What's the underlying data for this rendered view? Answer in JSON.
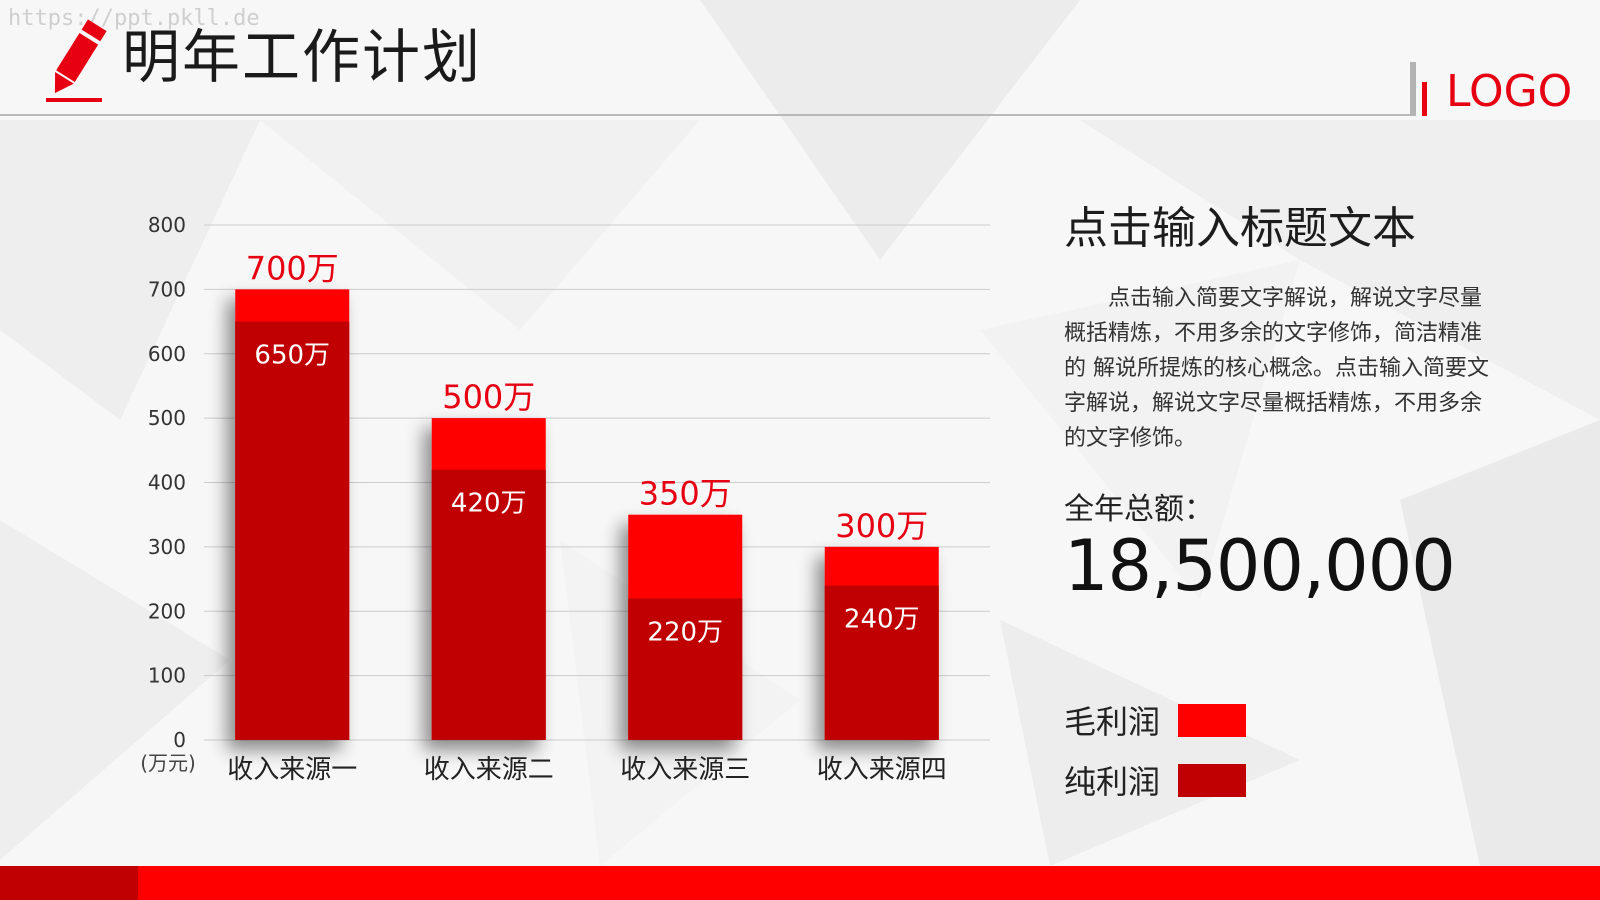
{
  "watermark": "https://ppt.pkll.de",
  "header": {
    "title": "明年工作计划",
    "logo_text": "LOGO",
    "icon": "pencil-icon"
  },
  "colors": {
    "accent": "#e60012",
    "gross": "#ff0000",
    "net": "#c00000"
  },
  "side": {
    "title": "点击输入标题文本",
    "description": "点击输入简要文字解说，解说文字尽量概括精炼，不用多余的文字修饰，简洁精准的 解说所提炼的核心概念。点击输入简要文字解说，解说文字尽量概括精炼，不用多余的文字修饰。",
    "total_label": "全年总额：",
    "total_value": "18,500,000"
  },
  "legend": [
    {
      "label": "毛利润",
      "color": "#ff0000"
    },
    {
      "label": "纯利润",
      "color": "#c00000"
    }
  ],
  "chart_data": {
    "type": "bar",
    "unit_label": "(万元)",
    "categories": [
      "收入来源一",
      "收入来源二",
      "收入来源三",
      "收入来源四"
    ],
    "series": [
      {
        "name": "毛利润",
        "values": [
          700,
          500,
          350,
          300
        ],
        "labels": [
          "700万",
          "500万",
          "350万",
          "300万"
        ],
        "color": "#ff0000"
      },
      {
        "name": "纯利润",
        "values": [
          650,
          420,
          220,
          240
        ],
        "labels": [
          "650万",
          "420万",
          "220万",
          "240万"
        ],
        "color": "#c00000"
      }
    ],
    "ylim": [
      0,
      800
    ],
    "yticks": [
      0,
      100,
      200,
      300,
      400,
      500,
      600,
      700,
      800
    ],
    "grid": true,
    "legend_position": "right"
  }
}
